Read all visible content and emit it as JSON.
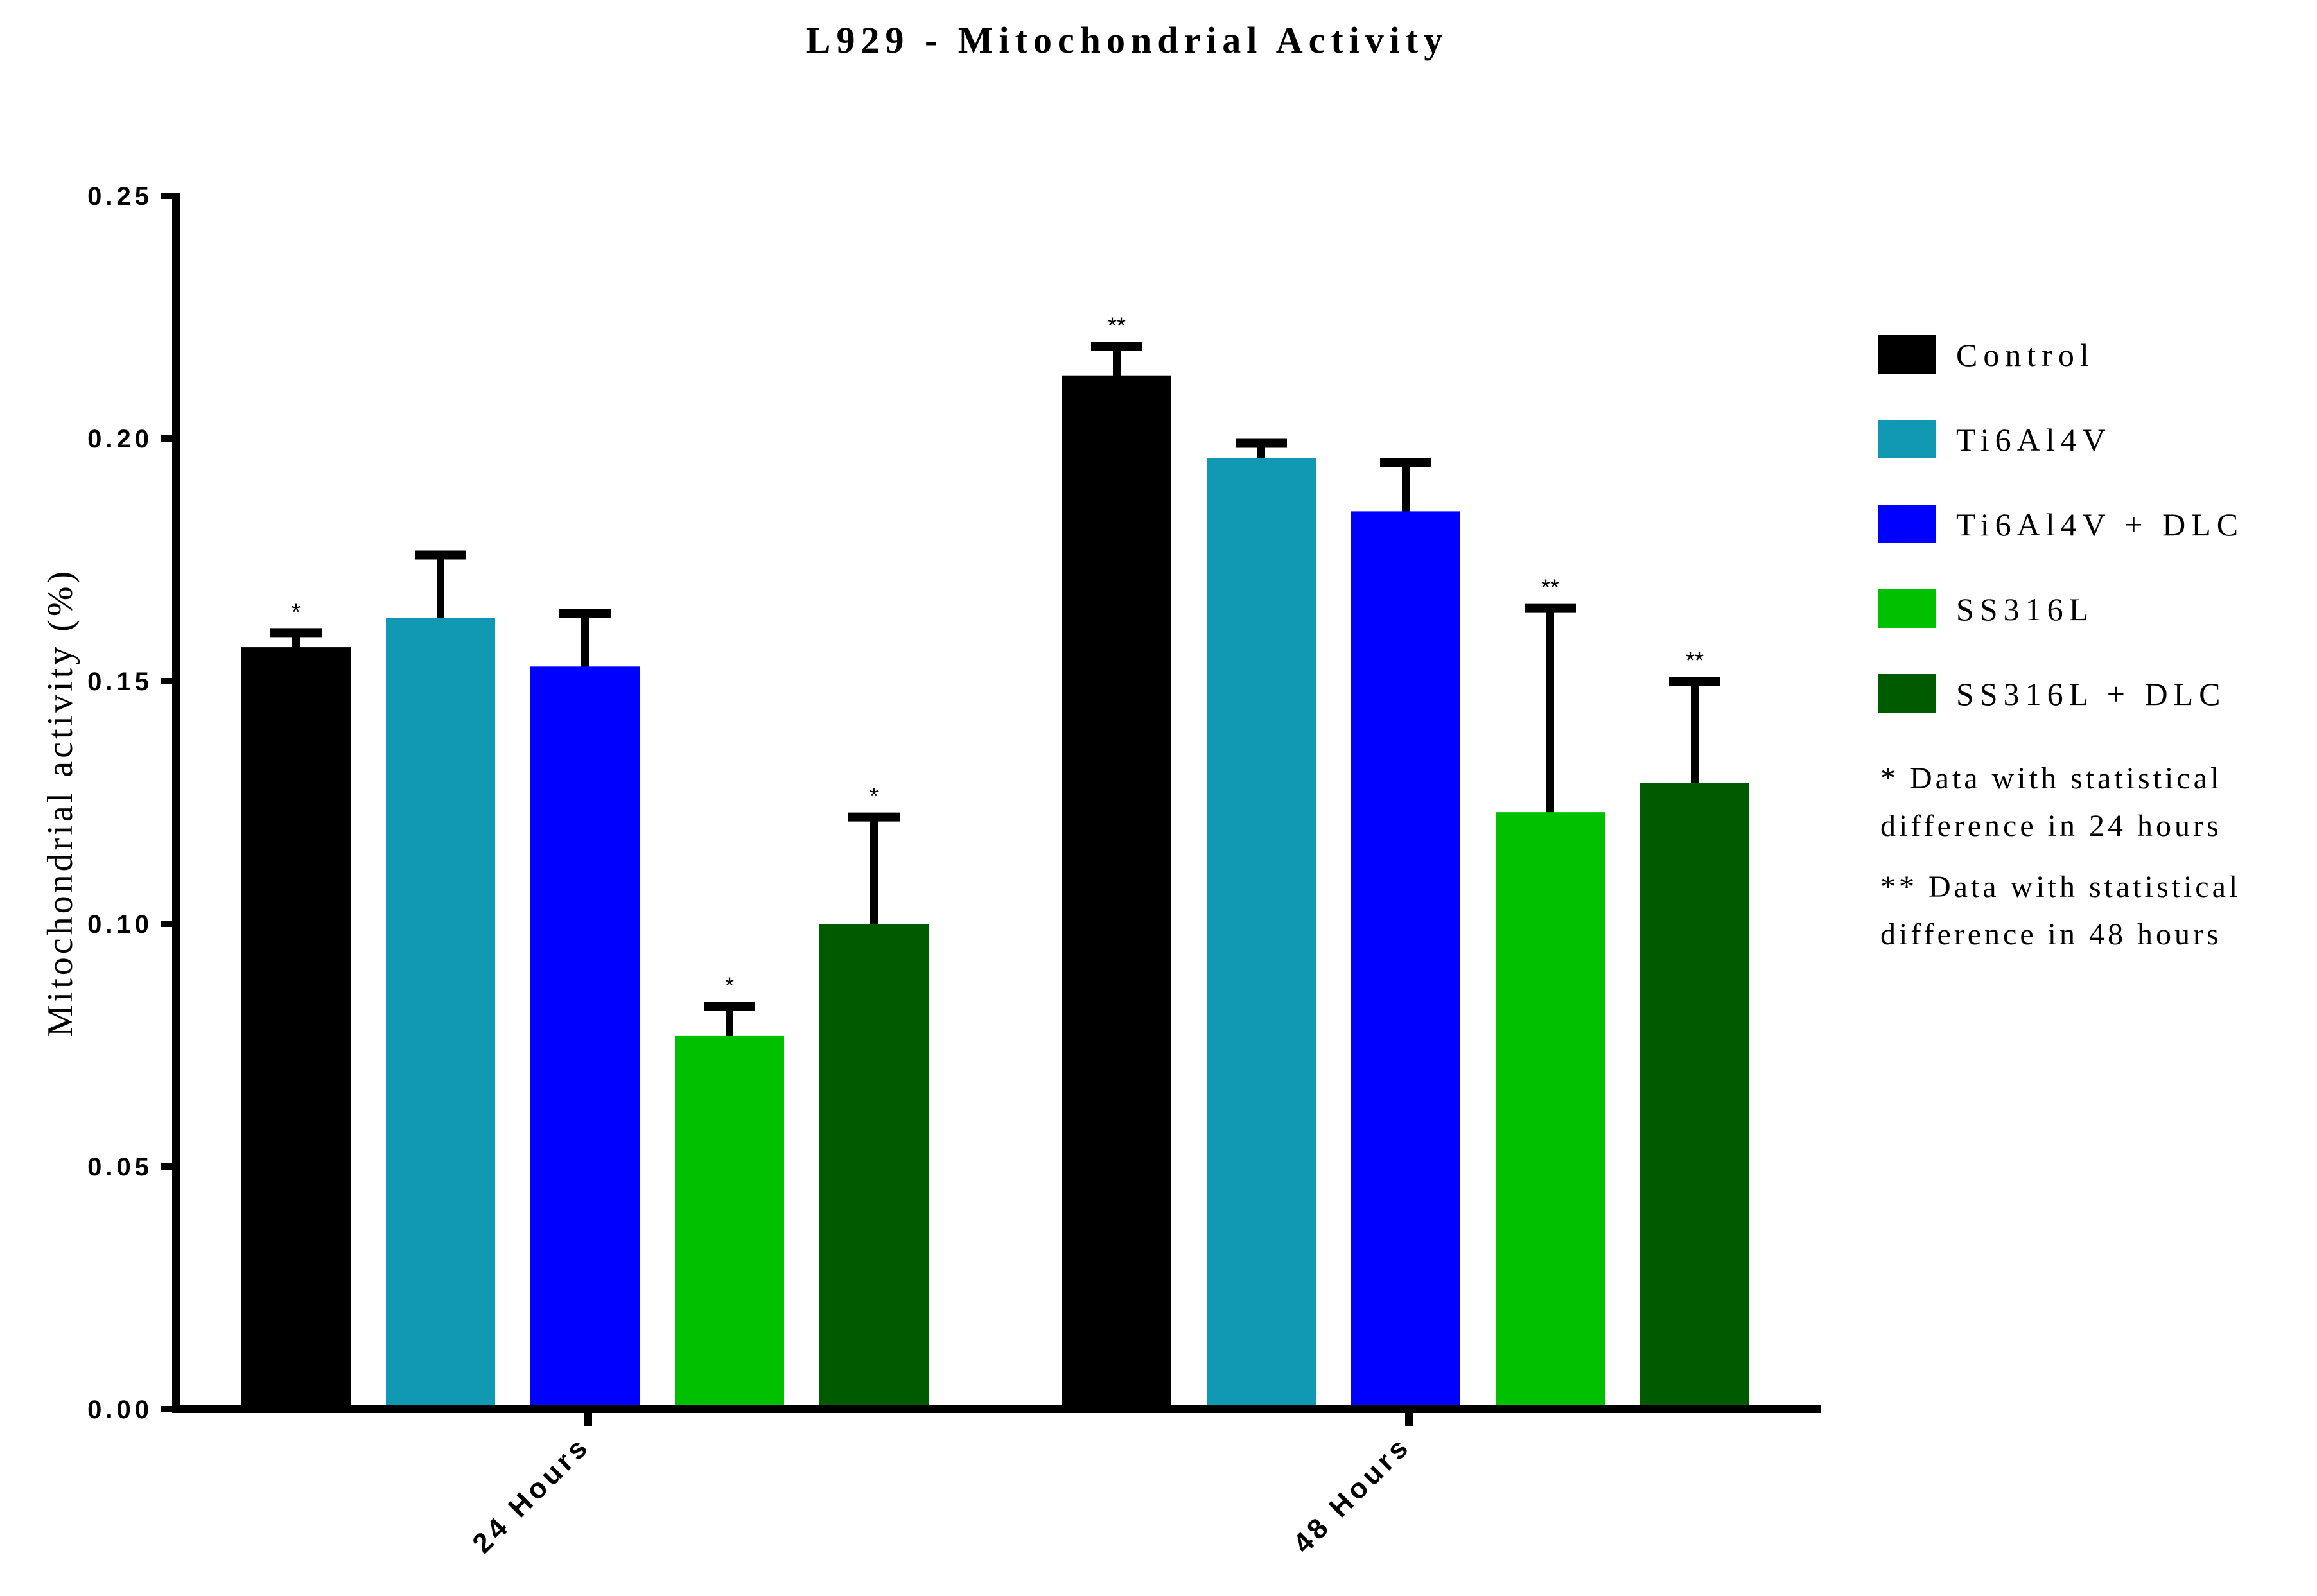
{
  "chart_data": {
    "type": "bar",
    "title": "L929 - Mitochondrial Activity",
    "xlabel": "",
    "ylabel": "Mitochondrial activity (%)",
    "categories": [
      "24 Hours",
      "48 Hours"
    ],
    "ylim": [
      0,
      0.25
    ],
    "yticks": [
      "0.00",
      "0.05",
      "0.10",
      "0.15",
      "0.20",
      "0.25"
    ],
    "grid": false,
    "legend_position": "right",
    "series": [
      {
        "name": "Control",
        "color": "#000000",
        "values": [
          0.157,
          0.213
        ],
        "error": [
          0.003,
          0.006
        ],
        "significance": [
          "*",
          "**"
        ]
      },
      {
        "name": "Ti6Al4V",
        "color": "#1199B3",
        "values": [
          0.163,
          0.196
        ],
        "error": [
          0.013,
          0.003
        ],
        "significance": [
          "",
          ""
        ]
      },
      {
        "name": "Ti6Al4V +  DLC",
        "color": "#0000FF",
        "values": [
          0.153,
          0.185
        ],
        "error": [
          0.011,
          0.01
        ],
        "significance": [
          "",
          ""
        ]
      },
      {
        "name": "SS316L",
        "color": "#00C000",
        "values": [
          0.077,
          0.123
        ],
        "error": [
          0.006,
          0.042
        ],
        "significance": [
          "*",
          "**"
        ]
      },
      {
        "name": "SS316L + DLC",
        "color": "#005A00",
        "values": [
          0.1,
          0.129
        ],
        "error": [
          0.022,
          0.021
        ],
        "significance": [
          "*",
          "**"
        ]
      }
    ],
    "notes": [
      [
        "* Data with statistical",
        "difference in 24 hours"
      ],
      [
        "** Data with statistical",
        "difference in 48 hours"
      ]
    ]
  }
}
